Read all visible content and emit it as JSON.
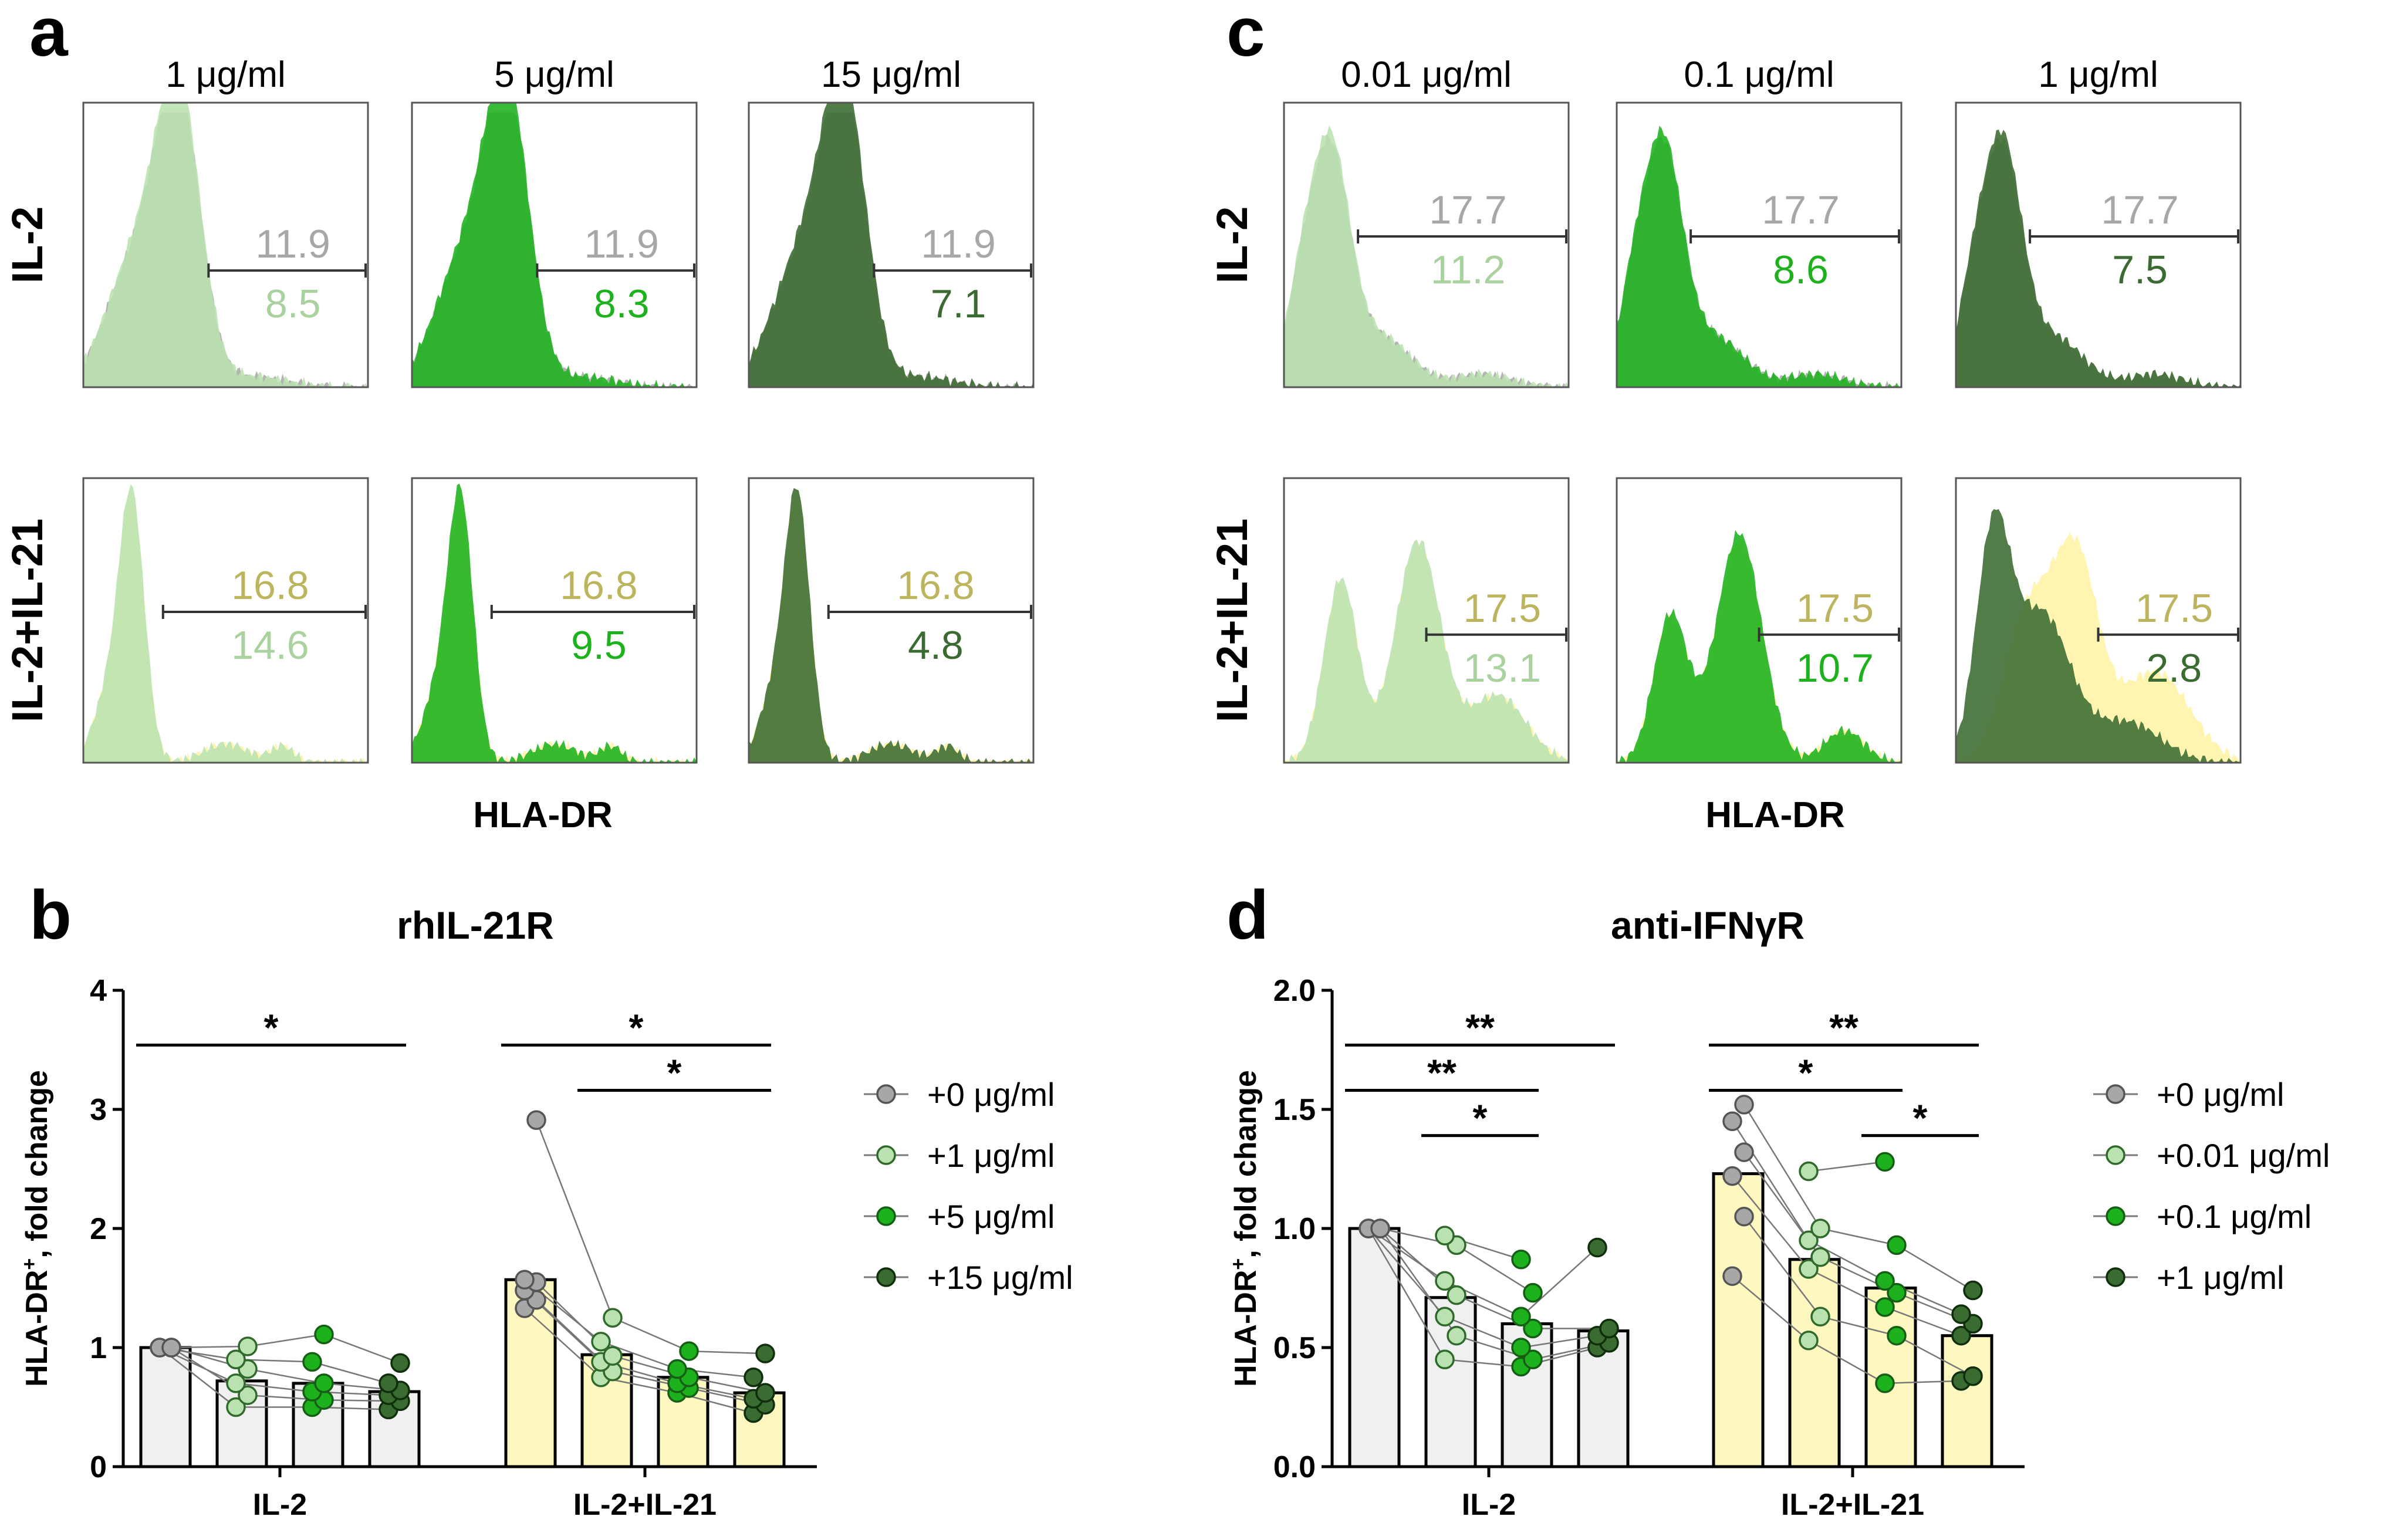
{
  "colors": {
    "gray": "#a7a7a7",
    "pale_green": "#b9e2b0",
    "mid_green": "#1db21d",
    "dark_green": "#3a6b30",
    "yellow": "#fff39c",
    "yellow_text": "#bdb45e",
    "bar_gray": "#f0f0f0",
    "bar_yellow": "#fff7c0"
  },
  "panel_a": {
    "letter": "a",
    "col_headers": [
      "1 μg/ml",
      "5 μg/ml",
      "15 μg/ml"
    ],
    "row_labels": [
      "IL-2",
      "IL-2+IL-21"
    ],
    "xlabel": "HLA-DR",
    "hist": [
      [
        {
          "top": "11.9",
          "bottom": "8.5"
        },
        {
          "top": "11.9",
          "bottom": "8.3"
        },
        {
          "top": "11.9",
          "bottom": "7.1"
        }
      ],
      [
        {
          "top": "16.8",
          "bottom": "14.6"
        },
        {
          "top": "16.8",
          "bottom": "9.5"
        },
        {
          "top": "16.8",
          "bottom": "4.8"
        }
      ]
    ]
  },
  "panel_c": {
    "letter": "c",
    "col_headers": [
      "0.01 μg/ml",
      "0.1 μg/ml",
      "1 μg/ml"
    ],
    "row_labels": [
      "IL-2",
      "IL-2+IL-21"
    ],
    "xlabel": "HLA-DR",
    "hist": [
      [
        {
          "top": "17.7",
          "bottom": "11.2"
        },
        {
          "top": "17.7",
          "bottom": "8.6"
        },
        {
          "top": "17.7",
          "bottom": "7.5"
        }
      ],
      [
        {
          "top": "17.5",
          "bottom": "13.1"
        },
        {
          "top": "17.5",
          "bottom": "10.7"
        },
        {
          "top": "17.5",
          "bottom": "2.8"
        }
      ]
    ]
  },
  "chart_data": [
    {
      "panel": "b",
      "type": "bar",
      "title": "rhIL-21R",
      "ylabel_main": "HLA-DR",
      "ylabel_sup": "+",
      "ylabel_rest": ", fold change",
      "ylim": [
        0,
        4
      ],
      "yticks": [
        "0",
        "1",
        "2",
        "3",
        "4"
      ],
      "groups": [
        "IL-2",
        "IL-2+IL-21"
      ],
      "legend": [
        "+0 μg/ml",
        "+1 μg/ml",
        "+5 μg/ml",
        "+15 μg/ml"
      ],
      "bars": [
        [
          1.0,
          0.72,
          0.7,
          0.63
        ],
        [
          1.57,
          0.94,
          0.75,
          0.62
        ]
      ],
      "points": [
        [
          [
            1.0,
            1.0,
            1.0,
            1.0,
            1.0,
            1.0
          ],
          [
            0.5,
            0.6,
            0.7,
            0.82,
            0.9,
            1.01
          ],
          [
            0.5,
            0.56,
            0.63,
            0.7,
            0.88,
            1.11
          ],
          [
            0.48,
            0.55,
            0.6,
            0.64,
            0.7,
            0.87
          ]
        ],
        [
          [
            1.33,
            1.4,
            1.48,
            1.55,
            1.57,
            2.91
          ],
          [
            0.75,
            0.8,
            0.88,
            0.93,
            1.05,
            1.25
          ],
          [
            0.62,
            0.66,
            0.7,
            0.75,
            0.82,
            0.97
          ],
          [
            0.45,
            0.52,
            0.57,
            0.62,
            0.75,
            0.95
          ]
        ]
      ],
      "sig": [
        {
          "label": "*",
          "group": 0,
          "from": 0,
          "to": 3,
          "level": 0
        },
        {
          "label": "*",
          "group": 1,
          "from": 0,
          "to": 3,
          "level": 0
        },
        {
          "label": "*",
          "group": 1,
          "from": 1,
          "to": 3,
          "level": 1
        }
      ]
    },
    {
      "panel": "d",
      "type": "bar",
      "title": "anti-IFNγR",
      "ylabel_main": "HLA-DR",
      "ylabel_sup": "+",
      "ylabel_rest": ", fold change",
      "ylim": [
        0,
        2
      ],
      "yticks": [
        "0.0",
        "0.5",
        "1.0",
        "1.5",
        "2.0"
      ],
      "groups": [
        "IL-2",
        "IL-2+IL-21"
      ],
      "legend": [
        "+0 μg/ml",
        "+0.01 μg/ml",
        "+0.1 μg/ml",
        "+1 μg/ml"
      ],
      "bars": [
        [
          1.0,
          0.71,
          0.6,
          0.57
        ],
        [
          1.23,
          0.87,
          0.75,
          0.55
        ]
      ],
      "points": [
        [
          [
            1.0,
            1.0,
            1.0,
            1.0,
            1.0,
            1.0
          ],
          [
            0.45,
            0.55,
            0.63,
            0.72,
            0.78,
            0.93,
            0.97
          ],
          [
            0.42,
            0.45,
            0.5,
            0.58,
            0.63,
            0.73,
            0.87
          ],
          [
            0.5,
            0.52,
            0.55,
            0.58,
            0.92
          ]
        ],
        [
          [
            0.8,
            1.05,
            1.22,
            1.32,
            1.45,
            1.52
          ],
          [
            0.53,
            0.63,
            0.83,
            0.88,
            0.95,
            1.0,
            1.24
          ],
          [
            0.35,
            0.55,
            0.67,
            0.73,
            0.78,
            0.93,
            1.28
          ],
          [
            0.36,
            0.38,
            0.55,
            0.6,
            0.64,
            0.74
          ]
        ]
      ],
      "sig": [
        {
          "label": "**",
          "group": 0,
          "from": 0,
          "to": 3,
          "level": 0
        },
        {
          "label": "**",
          "group": 0,
          "from": 0,
          "to": 2,
          "level": 1
        },
        {
          "label": "*",
          "group": 0,
          "from": 1,
          "to": 2,
          "level": 2
        },
        {
          "label": "**",
          "group": 1,
          "from": 0,
          "to": 3,
          "level": 0
        },
        {
          "label": "*",
          "group": 1,
          "from": 0,
          "to": 2,
          "level": 1
        },
        {
          "label": "*",
          "group": 1,
          "from": 2,
          "to": 3,
          "level": 2
        }
      ]
    }
  ]
}
